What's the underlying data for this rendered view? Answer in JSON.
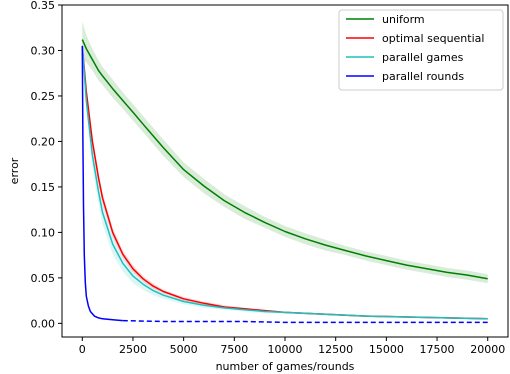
{
  "chart_data": {
    "type": "line",
    "xlabel": "number of games/rounds",
    "ylabel": "error",
    "xlim": [
      -1000,
      21000
    ],
    "ylim": [
      -0.015,
      0.35
    ],
    "xticks": [
      0,
      2500,
      5000,
      7500,
      10000,
      12500,
      15000,
      17500,
      20000
    ],
    "yticks": [
      0.0,
      0.05,
      0.1,
      0.15,
      0.2,
      0.25,
      0.3,
      0.35
    ],
    "ytick_labels": [
      "0.00",
      "0.05",
      "0.10",
      "0.15",
      "0.20",
      "0.25",
      "0.30",
      "0.35"
    ],
    "grid": false,
    "legend_position": "top-right",
    "series": [
      {
        "name": "uniform",
        "color": "#008000",
        "style": "solid",
        "x": [
          0,
          200,
          500,
          800,
          1000,
          1500,
          2000,
          2500,
          3000,
          4000,
          5000,
          6000,
          7000,
          8000,
          9000,
          10000,
          11000,
          12000,
          13000,
          14000,
          15000,
          16000,
          17000,
          18000,
          19000,
          20000
        ],
        "y": [
          0.312,
          0.302,
          0.29,
          0.278,
          0.272,
          0.258,
          0.245,
          0.232,
          0.219,
          0.193,
          0.169,
          0.151,
          0.135,
          0.122,
          0.111,
          0.101,
          0.093,
          0.086,
          0.08,
          0.074,
          0.069,
          0.064,
          0.06,
          0.056,
          0.053,
          0.049
        ],
        "band_halfwidth": [
          0.02,
          0.015,
          0.012,
          0.011,
          0.01,
          0.01,
          0.009,
          0.009,
          0.009,
          0.009,
          0.008,
          0.008,
          0.007,
          0.007,
          0.006,
          0.006,
          0.006,
          0.006,
          0.005,
          0.005,
          0.005,
          0.005,
          0.005,
          0.005,
          0.005,
          0.005
        ]
      },
      {
        "name": "optimal sequential",
        "color": "#ff0000",
        "style": "solid",
        "x": [
          0,
          200,
          500,
          800,
          1000,
          1500,
          2000,
          2500,
          3000,
          3500,
          4000,
          5000,
          6000,
          7000,
          8000,
          9000,
          10000,
          12000,
          14000,
          16000,
          18000,
          20000
        ],
        "y": [
          0.305,
          0.255,
          0.2,
          0.16,
          0.138,
          0.1,
          0.076,
          0.06,
          0.049,
          0.041,
          0.035,
          0.027,
          0.022,
          0.018,
          0.016,
          0.014,
          0.012,
          0.01,
          0.008,
          0.007,
          0.006,
          0.005
        ],
        "band_halfwidth": [
          0.005,
          0.005,
          0.006,
          0.006,
          0.006,
          0.005,
          0.004,
          0.004,
          0.003,
          0.003,
          0.002,
          0.002,
          0.002,
          0.002,
          0.001,
          0.001,
          0.001,
          0.001,
          0.001,
          0.001,
          0.001,
          0.001
        ]
      },
      {
        "name": "parallel games",
        "color": "#1fbfbf",
        "style": "solid",
        "x": [
          0,
          200,
          500,
          800,
          1000,
          1500,
          2000,
          2500,
          3000,
          3500,
          4000,
          5000,
          6000,
          7000,
          8000,
          9000,
          10000,
          12000,
          14000,
          16000,
          18000,
          20000
        ],
        "y": [
          0.305,
          0.245,
          0.185,
          0.145,
          0.122,
          0.087,
          0.066,
          0.052,
          0.043,
          0.036,
          0.031,
          0.024,
          0.02,
          0.017,
          0.015,
          0.013,
          0.012,
          0.01,
          0.008,
          0.007,
          0.006,
          0.005
        ],
        "band_halfwidth": [
          0.008,
          0.012,
          0.014,
          0.014,
          0.013,
          0.011,
          0.009,
          0.008,
          0.006,
          0.005,
          0.004,
          0.003,
          0.003,
          0.002,
          0.002,
          0.002,
          0.001,
          0.001,
          0.001,
          0.001,
          0.001,
          0.001
        ]
      },
      {
        "name": "parallel rounds",
        "color": "#0000ff",
        "style": "solid",
        "x": [
          0,
          30,
          60,
          100,
          150,
          200,
          300,
          400,
          600,
          800,
          1000,
          1500,
          2000
        ],
        "y": [
          0.305,
          0.2,
          0.13,
          0.075,
          0.045,
          0.03,
          0.019,
          0.013,
          0.008,
          0.006,
          0.005,
          0.004,
          0.003
        ],
        "band_halfwidth": [],
        "dashed_continuation": {
          "x": [
            2000,
            4000,
            6000,
            8000,
            10000,
            12000,
            14000,
            16000,
            18000,
            20000
          ],
          "y": [
            0.003,
            0.002,
            0.002,
            0.002,
            0.001,
            0.001,
            0.001,
            0.001,
            0.001,
            0.001
          ]
        }
      }
    ]
  }
}
